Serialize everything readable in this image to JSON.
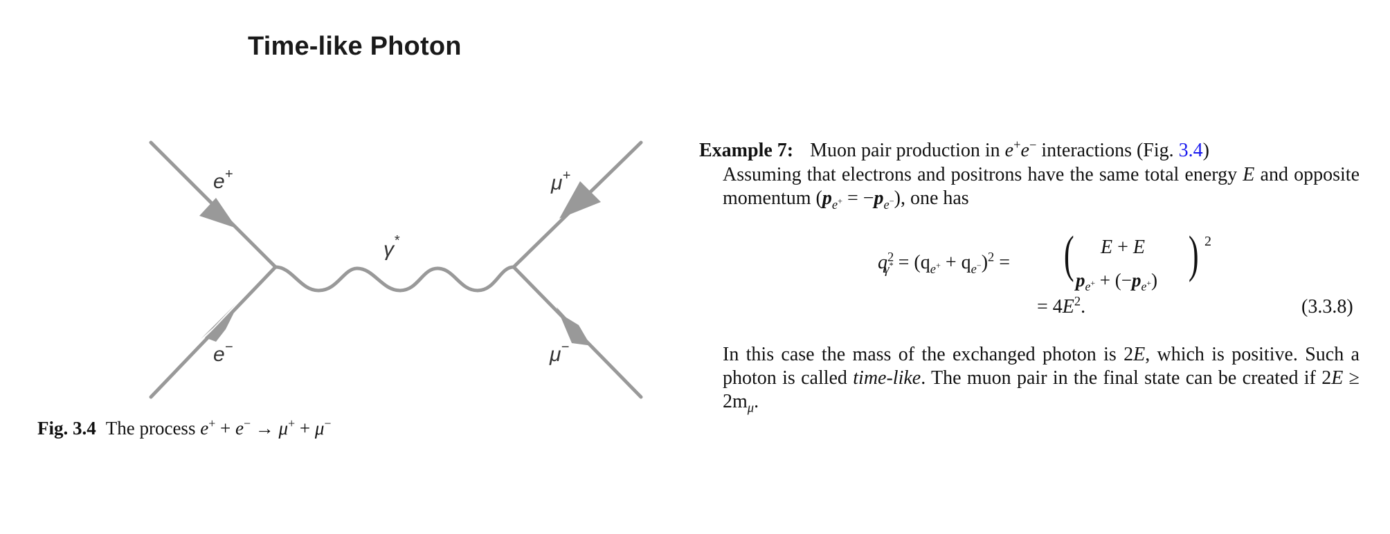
{
  "page": {
    "title": "Time-like Photon"
  },
  "diagram": {
    "labels": {
      "e_plus_base": "e",
      "e_plus_sup": "+",
      "e_minus_base": "e",
      "e_minus_sup": "−",
      "mu_plus_base": "μ",
      "mu_plus_sup": "+",
      "mu_minus_base": "μ",
      "mu_minus_sup": "−",
      "photon_base": "γ",
      "photon_sup": "*"
    },
    "colors": {
      "line": "#999999",
      "text": "#333333"
    }
  },
  "caption": {
    "label": "Fig. 3.4",
    "text_prefix": "The process",
    "e": "e",
    "plus": "+",
    "minus": "−",
    "mu": "μ",
    "arrow": "→"
  },
  "example": {
    "label": "Example 7:",
    "text": "Muon pair production in",
    "e": "e",
    "sup_plus": "+",
    "sup_minus": "−",
    "text_after": "interactions (Fig.",
    "ref": "3.4",
    "close": ")",
    "ref_color": "#1a1aee"
  },
  "intro": {
    "text1": "Assuming that electrons and positrons have the same total energy",
    "E": "E",
    "text2": "and opposite momentum (",
    "p": "p",
    "sub_eplus": "e",
    "sub_eminus": "e",
    "sup_plus": "+",
    "sup_minus": "−",
    "equals": " = −",
    "text3": "), one has"
  },
  "equation": {
    "lhs_q": "q",
    "lhs_sup": "2",
    "lhs_sub_gamma": "γ",
    "lhs_sub_star": "*",
    "mid": "= (q",
    "mid2": " + q",
    "mid3": ")",
    "mid_sup": "2",
    "eq": "=",
    "matrix_top": "E + E",
    "matrix_bottom_p": "p",
    "matrix_bottom_mid": " + (−",
    "matrix_bottom_end": ")",
    "outer_sup": "2",
    "line2": "= 4E",
    "line2_sup": "2",
    "line2_end": ".",
    "number": "(3.3.8)"
  },
  "conclusion": {
    "text1": "In this case the mass of the exchanged photon is 2",
    "E": "E",
    "text2": ", which is positive. Such a photon is called",
    "timelike": "time-like",
    "text3": ". The muon pair in the final state can be created if 2",
    "E2": "E",
    "text4": " ≥ 2m",
    "mu": "μ",
    "text5": "."
  }
}
